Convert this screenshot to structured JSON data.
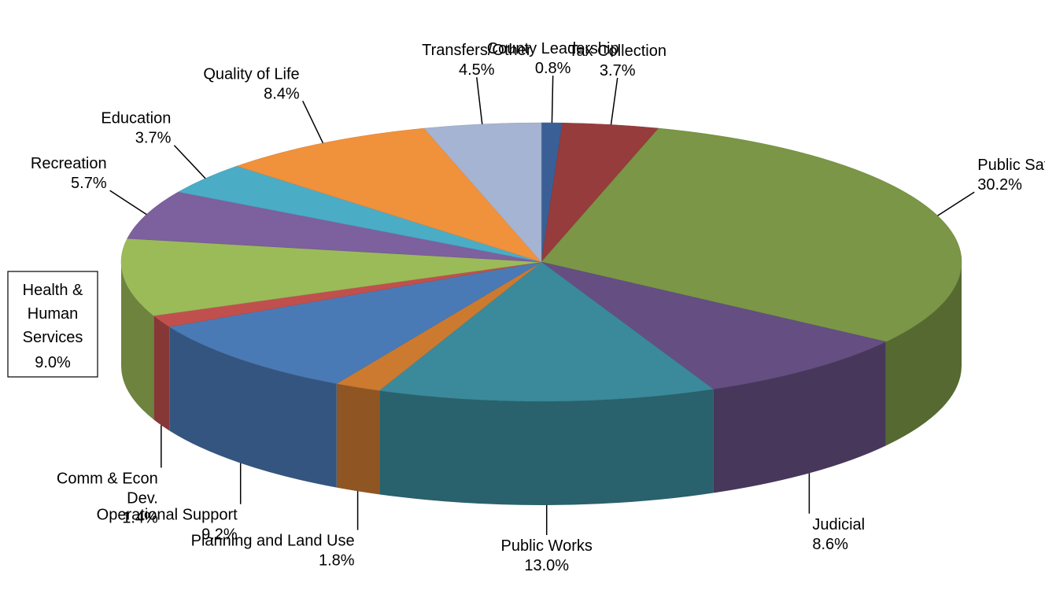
{
  "chart_data": {
    "type": "pie",
    "style": "3d",
    "title": "",
    "slices": [
      {
        "label": "County Leadership",
        "value": 0.8,
        "value_label": "0.8%",
        "color": "#3a5f96"
      },
      {
        "label": "Tax Collection",
        "value": 3.7,
        "value_label": "3.7%",
        "color": "#963c3c"
      },
      {
        "label": "Public Safety",
        "value": 30.2,
        "value_label": "30.2%",
        "color": "#7a9646"
      },
      {
        "label": "Judicial",
        "value": 8.6,
        "value_label": "8.6%",
        "color": "#654f82"
      },
      {
        "label": "Public Works",
        "value": 13.0,
        "value_label": "13.0%",
        "color": "#3a8a9b"
      },
      {
        "label": "Planning and Land Use",
        "value": 1.8,
        "value_label": "1.8%",
        "color": "#cc7a30"
      },
      {
        "label": "Operational Support",
        "value": 9.2,
        "value_label": "9.2%",
        "color": "#4a7ab5"
      },
      {
        "label": "Comm & Econ Dev.",
        "value": 1.4,
        "value_label": "1.4%",
        "color": "#c0504d"
      },
      {
        "label": "Health & Human Services",
        "value": 9.0,
        "value_label": "9.0%",
        "color": "#9bbb59"
      },
      {
        "label": "Recreation",
        "value": 5.7,
        "value_label": "5.7%",
        "color": "#7d609e"
      },
      {
        "label": "Education",
        "value": 3.7,
        "value_label": "3.7%",
        "color": "#4bacc6"
      },
      {
        "label": "Quality of Life",
        "value": 8.4,
        "value_label": "8.4%",
        "color": "#f0913c"
      },
      {
        "label": "Transfers/Other",
        "value": 4.5,
        "value_label": "4.5%",
        "color": "#a5b4d2"
      }
    ]
  }
}
